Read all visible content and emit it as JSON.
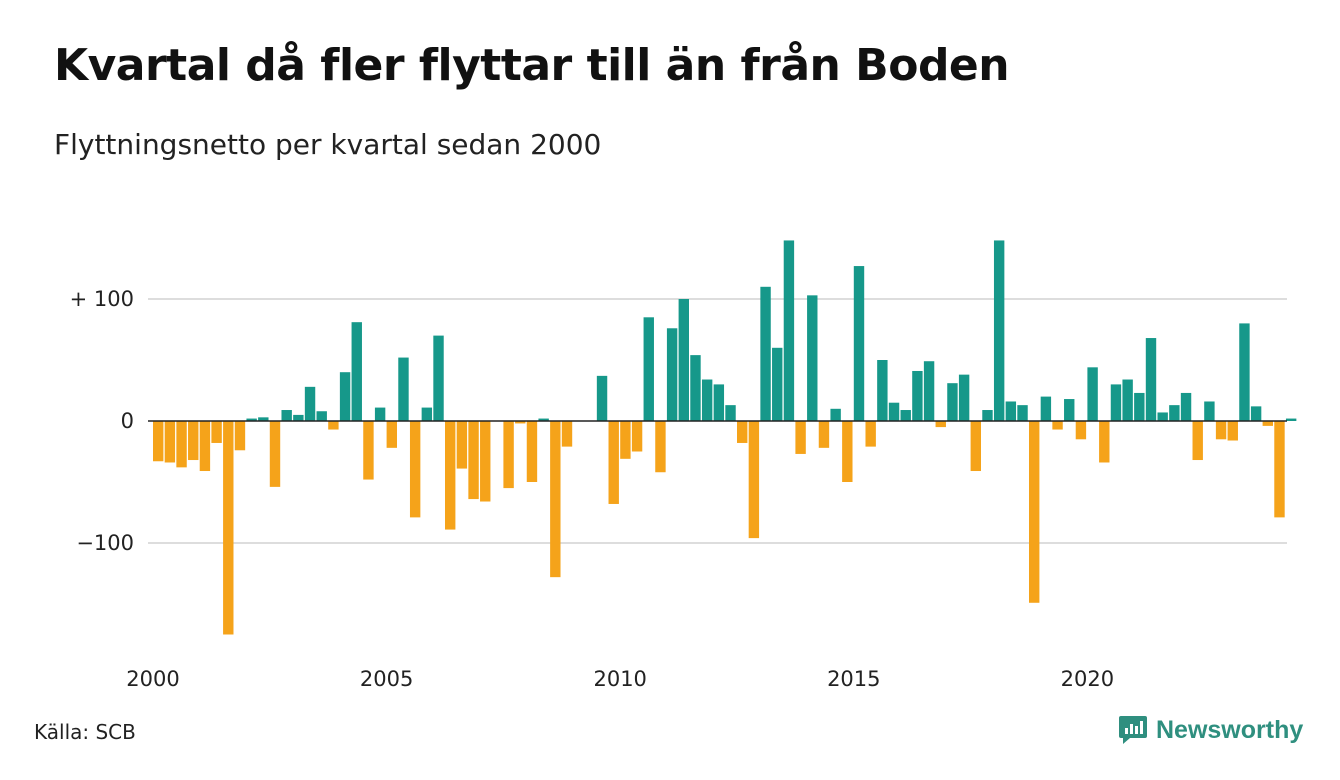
{
  "title": "Kvartal då fler flyttar till än från Boden",
  "subtitle": "Flyttningsnetto per kvartal sedan 2000",
  "source": "Källa: SCB",
  "brand": "Newsworthy",
  "colors": {
    "positive": "#16988a",
    "negative": "#f5a31a",
    "grid": "#dddddd",
    "brand": "#2f8f7f"
  },
  "chart_data": {
    "type": "bar",
    "title": "Kvartal då fler flyttar till än från Boden",
    "subtitle": "Flyttningsnetto per kvartal sedan 2000",
    "xlabel": "",
    "ylabel": "",
    "ylim": [
      -180,
      150
    ],
    "grid": true,
    "yticks": [
      {
        "value": 100,
        "label": "+ 100"
      },
      {
        "value": 0,
        "label": "0"
      },
      {
        "value": -100,
        "label": "−100"
      }
    ],
    "xticks": [
      "2000",
      "2005",
      "2010",
      "2015",
      "2020"
    ],
    "start_year": 2000,
    "values": [
      -33,
      -34,
      -38,
      -32,
      -41,
      -18,
      -175,
      -24,
      2,
      3,
      -54,
      9,
      5,
      28,
      8,
      -7,
      40,
      81,
      -48,
      11,
      -22,
      52,
      -79,
      11,
      70,
      -89,
      -39,
      -64,
      -66,
      0,
      -55,
      -2,
      -50,
      2,
      -128,
      -21,
      0,
      0,
      37,
      -68,
      -31,
      -25,
      85,
      -42,
      76,
      100,
      54,
      34,
      30,
      13,
      -18,
      -96,
      110,
      60,
      148,
      -27,
      103,
      -22,
      10,
      -50,
      127,
      -21,
      50,
      15,
      9,
      41,
      49,
      -5,
      31,
      38,
      -41,
      9,
      148,
      16,
      13,
      -149,
      20,
      -7,
      18,
      -15,
      44,
      -34,
      30,
      34,
      23,
      68,
      7,
      13,
      23,
      -32,
      16,
      -15,
      -16,
      80,
      12,
      -4,
      -79,
      2
    ]
  }
}
